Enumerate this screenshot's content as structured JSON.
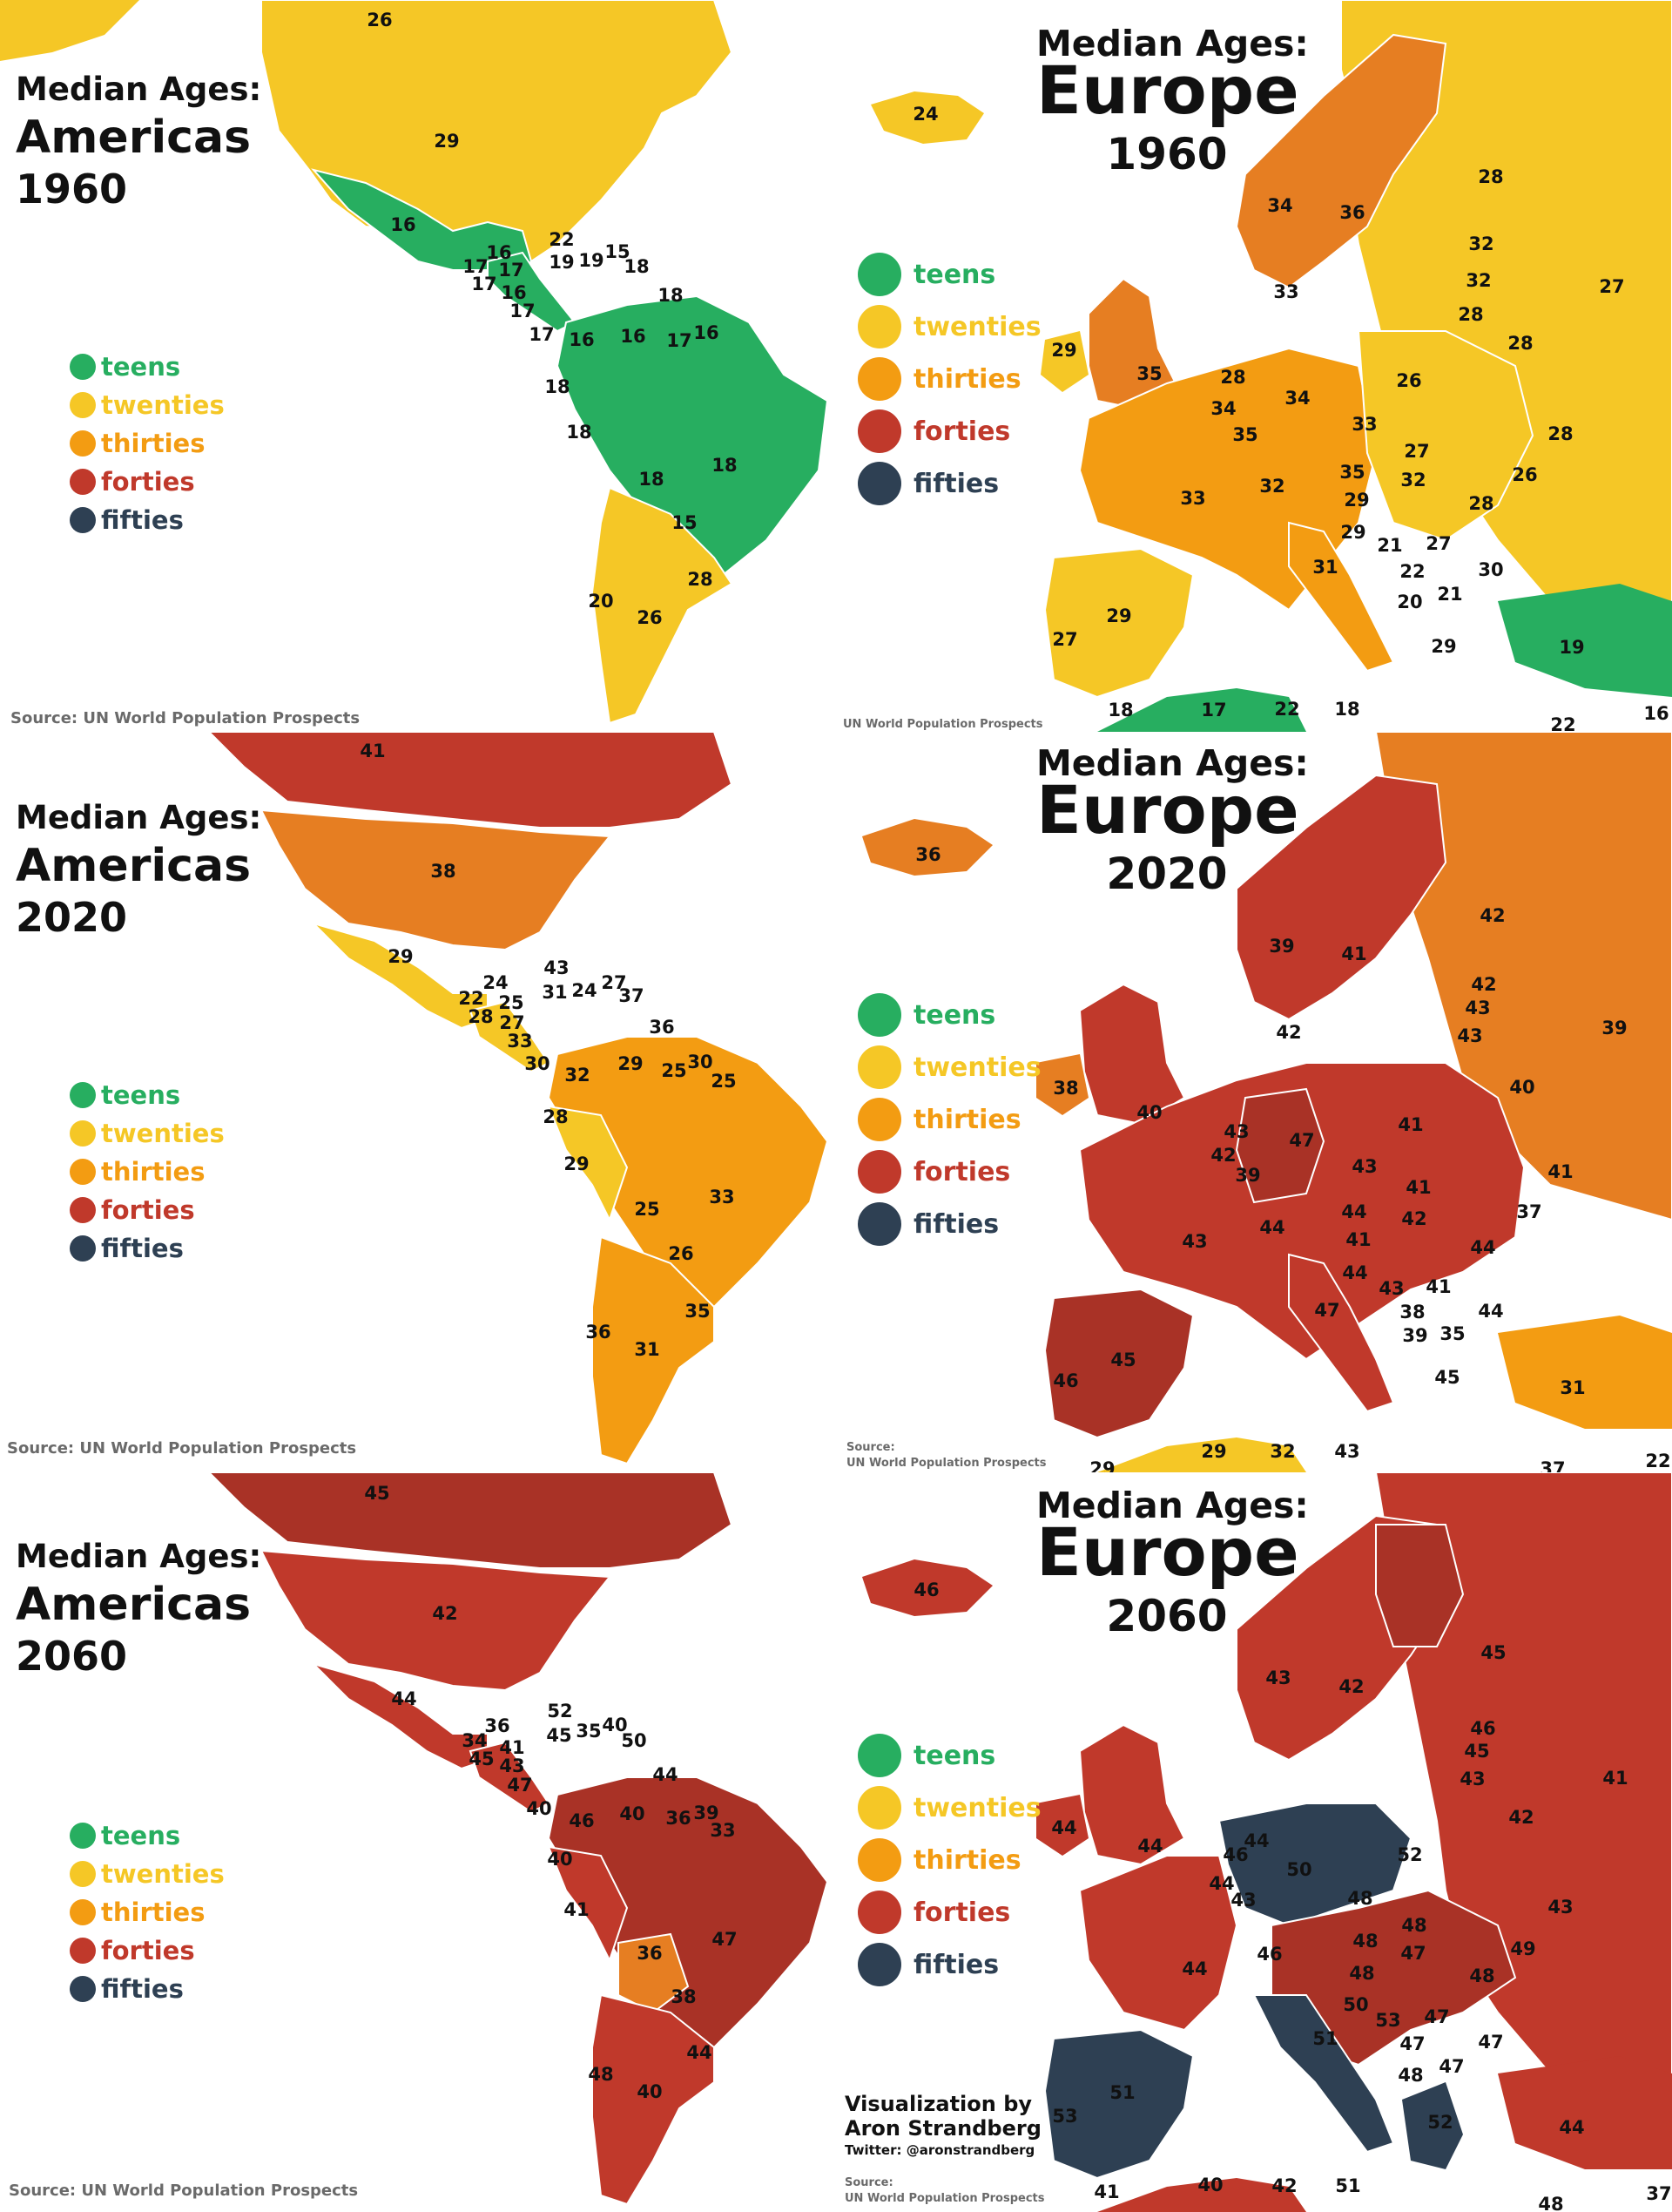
{
  "colors": {
    "teens": "#27ae60",
    "twenties": "#f5c726",
    "thirties": "#f39c12",
    "thirties_dark": "#e67e22",
    "forties": "#c0392b",
    "forties_dark": "#a93226",
    "fifties": "#2e4053",
    "background": "#ffffff",
    "source_text": "#6a6a6a",
    "border_marker": "#b0b0b0"
  },
  "legend": [
    {
      "label": "teens",
      "color": "#27ae60"
    },
    {
      "label": "twenties",
      "color": "#f5c726"
    },
    {
      "label": "thirties",
      "color": "#f39c12"
    },
    {
      "label": "forties",
      "color": "#c0392b"
    },
    {
      "label": "fifties",
      "color": "#2e4053"
    }
  ],
  "panels": {
    "americas_1960": {
      "title_line1": "Median Ages:",
      "title_line2": "Americas",
      "title_line3": "1960",
      "source": "Source: UN World Population Prospects",
      "labels": [
        "26",
        "29",
        "16",
        "16",
        "17",
        "17",
        "17",
        "16",
        "17",
        "17",
        "22",
        "19",
        "19",
        "15",
        "18",
        "18",
        "16",
        "16",
        "17",
        "16",
        "18",
        "18",
        "18",
        "18",
        "15",
        "28",
        "20",
        "26"
      ]
    },
    "europe_1960": {
      "title_line1": "Median Ages:",
      "title_line2": "Europe",
      "title_line3": "1960",
      "source": "UN World Population Prospects",
      "labels": [
        "24",
        "34",
        "36",
        "28",
        "33",
        "32",
        "32",
        "27",
        "28",
        "28",
        "29",
        "35",
        "28",
        "34",
        "26",
        "34",
        "35",
        "33",
        "27",
        "28",
        "35",
        "32",
        "26",
        "33",
        "32",
        "29",
        "28",
        "29",
        "21",
        "27",
        "31",
        "22",
        "30",
        "20",
        "21",
        "29",
        "27",
        "19",
        "29",
        "17",
        "18",
        "22",
        "18",
        "22",
        "16"
      ]
    },
    "americas_2020": {
      "title_line1": "Median Ages:",
      "title_line2": "Americas",
      "title_line3": "2020",
      "source": "Source: UN World Population Prospects",
      "labels": [
        "41",
        "38",
        "29",
        "24",
        "22",
        "25",
        "28",
        "27",
        "33",
        "43",
        "31",
        "24",
        "27",
        "37",
        "36",
        "30",
        "32",
        "29",
        "25",
        "30",
        "25",
        "28",
        "29",
        "25",
        "33",
        "26",
        "35",
        "36",
        "31"
      ]
    },
    "europe_2020": {
      "title_line1": "Median Ages:",
      "title_line2": "Europe",
      "title_line3": "2020",
      "source_line1": "Source:",
      "source_line2": "UN World Population Prospects",
      "labels": [
        "36",
        "42",
        "39",
        "41",
        "42",
        "43",
        "39",
        "42",
        "43",
        "38",
        "40",
        "40",
        "43",
        "47",
        "41",
        "42",
        "39",
        "43",
        "41",
        "41",
        "44",
        "42",
        "37",
        "43",
        "44",
        "41",
        "44",
        "44",
        "43",
        "41",
        "47",
        "38",
        "44",
        "39",
        "35",
        "46",
        "45",
        "45",
        "31",
        "29",
        "29",
        "32",
        "43",
        "37",
        "22"
      ]
    },
    "americas_2060": {
      "title_line1": "Median Ages:",
      "title_line2": "Americas",
      "title_line3": "2060",
      "source": "Source: UN World Population Prospects",
      "labels": [
        "45",
        "42",
        "44",
        "36",
        "34",
        "41",
        "45",
        "43",
        "47",
        "40",
        "52",
        "45",
        "35",
        "40",
        "50",
        "44",
        "46",
        "40",
        "36",
        "39",
        "33",
        "40",
        "41",
        "36",
        "47",
        "38",
        "44",
        "48",
        "40"
      ]
    },
    "europe_2060": {
      "title_line1": "Median Ages:",
      "title_line2": "Europe",
      "title_line3": "2060",
      "credit_line1": "Visualization by",
      "credit_line2": "Aron Strandberg",
      "credit_line3": "Twitter: @aronstrandberg",
      "source_line1": "Source:",
      "source_line2": "UN World Population Prospects",
      "labels": [
        "46",
        "43",
        "42",
        "45",
        "46",
        "45",
        "41",
        "43",
        "42",
        "44",
        "44",
        "44",
        "46",
        "50",
        "52",
        "44",
        "43",
        "48",
        "48",
        "43",
        "46",
        "48",
        "47",
        "49",
        "44",
        "48",
        "48",
        "50",
        "53",
        "47",
        "51",
        "47",
        "47",
        "48",
        "47",
        "51",
        "53",
        "52",
        "44",
        "41",
        "40",
        "42",
        "51",
        "48",
        "37"
      ]
    }
  }
}
